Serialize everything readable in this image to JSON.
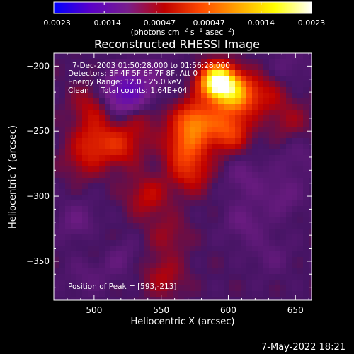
{
  "chart_data": {
    "type": "heatmap",
    "title": "Reconstructed RHESSI Image",
    "xlabel": "Heliocentric X (arcsec)",
    "ylabel": "Heliocentric Y (arcsec)",
    "xlim": [
      470,
      662
    ],
    "ylim": [
      -380,
      -190
    ],
    "x_ticks": [
      500,
      550,
      600,
      650
    ],
    "y_ticks": [
      -200,
      -250,
      -300,
      -350
    ],
    "x_tick_labels": [
      "500",
      "550",
      "600",
      "650"
    ],
    "y_tick_labels": [
      "−200",
      "−250",
      "−300",
      "−350"
    ],
    "colorbar": {
      "range": [
        -0.0023,
        0.0023
      ],
      "ticks": [
        -0.0023,
        -0.0014,
        -0.00047,
        0.00047,
        0.0014,
        0.0023
      ],
      "tick_labels": [
        "−0.0023",
        "−0.0014",
        "−0.00047",
        "0.00047",
        "0.0014",
        "0.0023"
      ],
      "colors": [
        "#0000ff",
        "#5a00c8",
        "#781e8c",
        "#bf0000",
        "#ff4a00",
        "#ffa500",
        "#ffff00",
        "#ffffff"
      ]
    },
    "annotations": {
      "line1": "7-Dec-2003 01:50:28.000 to 01:56:28.000",
      "line2": "Detectors: 3F 4F 5F 6F 7F 8F, Att 0",
      "line3": "Energy Range: 12.0 - 25.0 keV",
      "line4": "Clean     Total counts: 1.64E+04",
      "peak": "Position of Peak = [593,-213]"
    },
    "peak": {
      "x": 593,
      "y": -213
    },
    "blobs": [
      {
        "x": 592,
        "y": -212,
        "value": 0.0023
      },
      {
        "x": 605,
        "y": -222,
        "value": 0.0013
      },
      {
        "x": 575,
        "y": -242,
        "value": 0.0011
      },
      {
        "x": 568,
        "y": -262,
        "value": 0.0008
      },
      {
        "x": 600,
        "y": -250,
        "value": 0.0009
      },
      {
        "x": 572,
        "y": -282,
        "value": 0.0006
      },
      {
        "x": 520,
        "y": -262,
        "value": 0.0006
      },
      {
        "x": 500,
        "y": -230,
        "value": 0.0005
      },
      {
        "x": 500,
        "y": -255,
        "value": 0.0005
      },
      {
        "x": 493,
        "y": -272,
        "value": 0.0004
      },
      {
        "x": 535,
        "y": -242,
        "value": 0.0003
      },
      {
        "x": 540,
        "y": -300,
        "value": 0.0005
      },
      {
        "x": 555,
        "y": -330,
        "value": 0.0003
      },
      {
        "x": 552,
        "y": -362,
        "value": 0.0004
      },
      {
        "x": 628,
        "y": -222,
        "value": 0.0004
      },
      {
        "x": 646,
        "y": -242,
        "value": 0.0003
      },
      {
        "x": 505,
        "y": -340,
        "value": 0.0002
      },
      {
        "x": 528,
        "y": -218,
        "value": -0.0008
      },
      {
        "x": 517,
        "y": -223,
        "value": -0.0006
      },
      {
        "x": 488,
        "y": -320,
        "value": -0.0003
      },
      {
        "x": 495,
        "y": -360,
        "value": -0.0002
      },
      {
        "x": 517,
        "y": -346,
        "value": -0.0003
      },
      {
        "x": 612,
        "y": -285,
        "value": -0.0003
      },
      {
        "x": 612,
        "y": -320,
        "value": -0.0003
      },
      {
        "x": 632,
        "y": -346,
        "value": -0.0002
      },
      {
        "x": 640,
        "y": -300,
        "value": -0.0003
      },
      {
        "x": 652,
        "y": -270,
        "value": -0.0002
      },
      {
        "x": 548,
        "y": -205,
        "value": -0.0002
      },
      {
        "x": 645,
        "y": -200,
        "value": -0.0002
      }
    ]
  },
  "footer": {
    "timestamp": "7-May-2022 18:21"
  }
}
